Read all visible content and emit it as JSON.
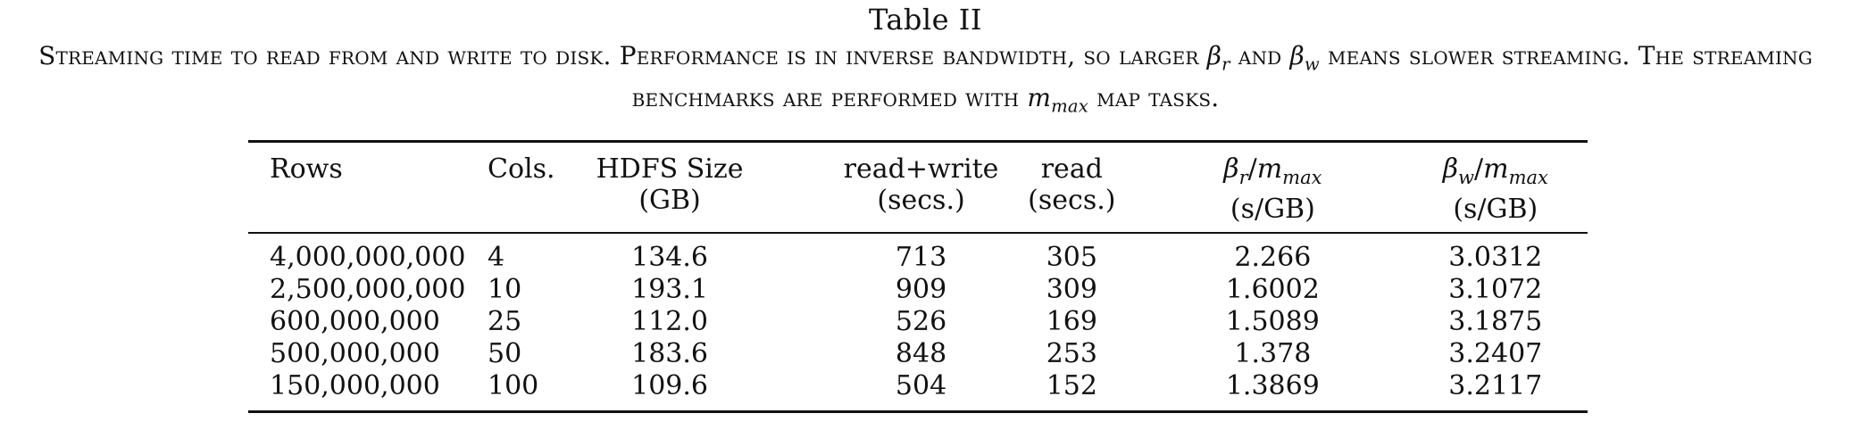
{
  "caption": {
    "table_number": "Table II",
    "text_part1": "Streaming time to read from and write to disk. Performance is in inverse bandwidth, so larger",
    "beta_r": "β",
    "beta_r_sub": "r",
    "text_and": "and",
    "beta_w": "β",
    "beta_w_sub": "w",
    "text_part2": "means slower streaming. The streaming benchmarks are performed with",
    "m": "m",
    "m_sub": "max",
    "text_part3": "map tasks."
  },
  "table": {
    "headers": {
      "rows": "Rows",
      "cols": "Cols.",
      "hdfs_line1": "HDFS Size",
      "hdfs_line2": "(GB)",
      "rw_line1": "read+write",
      "rw_line2": "(secs.)",
      "read_line1": "read",
      "read_line2": "(secs.)",
      "br_beta": "β",
      "br_beta_sub": "r",
      "br_slash": "/",
      "br_m": "m",
      "br_m_sub": "max",
      "br_line2": "(s/GB)",
      "bw_beta": "β",
      "bw_beta_sub": "w",
      "bw_slash": "/",
      "bw_m": "m",
      "bw_m_sub": "max",
      "bw_line2": "(s/GB)"
    },
    "rows": [
      {
        "rows": "4,000,000,000",
        "cols": "4",
        "hdfs": "134.6",
        "rw": "713",
        "read": "305",
        "br": "2.266",
        "bw": "3.0312"
      },
      {
        "rows": "2,500,000,000",
        "cols": "10",
        "hdfs": "193.1",
        "rw": "909",
        "read": "309",
        "br": "1.6002",
        "bw": "3.1072"
      },
      {
        "rows": "600,000,000",
        "cols": "25",
        "hdfs": "112.0",
        "rw": "526",
        "read": "169",
        "br": "1.5089",
        "bw": "3.1875"
      },
      {
        "rows": "500,000,000",
        "cols": "50",
        "hdfs": "183.6",
        "rw": "848",
        "read": "253",
        "br": "1.378",
        "bw": "3.2407"
      },
      {
        "rows": "150,000,000",
        "cols": "100",
        "hdfs": "109.6",
        "rw": "504",
        "read": "152",
        "br": "1.3869",
        "bw": "3.2117"
      }
    ]
  }
}
